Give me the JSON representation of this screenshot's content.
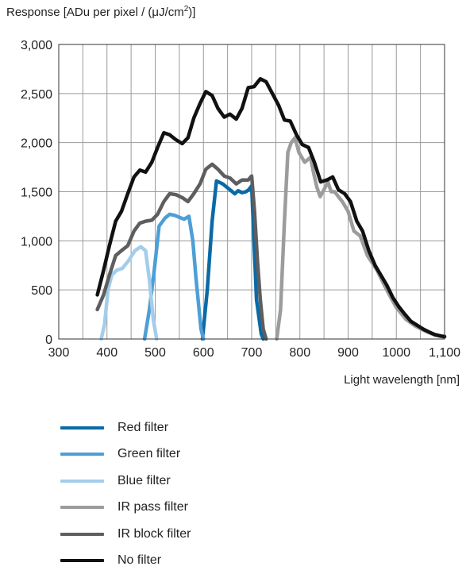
{
  "chart_data": {
    "type": "line",
    "ylabel": {
      "prefix": "Response [ADu per pixel / (μJ/cm",
      "sup": "2",
      "suffix": ")]"
    },
    "xlabel": "Light wavelength [nm]",
    "xlim": [
      300,
      1100
    ],
    "ylim": [
      0,
      3000
    ],
    "x_ticks": [
      300,
      400,
      500,
      600,
      700,
      800,
      900,
      1000,
      1100
    ],
    "x_tick_labels": [
      "300",
      "400",
      "500",
      "600",
      "700",
      "800",
      "900",
      "1000",
      "1,100"
    ],
    "y_ticks": [
      0,
      500,
      1000,
      1500,
      2000,
      2500,
      3000
    ],
    "y_tick_labels": [
      "0",
      "500",
      "1,000",
      "1,500",
      "2,000",
      "2,500",
      "3,000"
    ],
    "x_grid_step": 50,
    "grid": true,
    "legend_position": "bottom",
    "series": [
      {
        "name": "Red filter",
        "color": "#0a6aa6",
        "x": [
          598,
          608,
          618,
          627,
          640,
          655,
          665,
          672,
          680,
          688,
          694,
          700,
          710,
          720,
          724
        ],
        "y": [
          0,
          500,
          1200,
          1610,
          1580,
          1520,
          1480,
          1510,
          1490,
          1500,
          1520,
          1560,
          400,
          50,
          0
        ]
      },
      {
        "name": "Green filter",
        "color": "#4d9fd6",
        "x": [
          478,
          488,
          498,
          508,
          520,
          530,
          540,
          550,
          560,
          570,
          578,
          585,
          595,
          600
        ],
        "y": [
          0,
          300,
          700,
          1150,
          1230,
          1270,
          1260,
          1240,
          1220,
          1250,
          1000,
          600,
          100,
          0
        ]
      },
      {
        "name": "Blue filter",
        "color": "#a3cdea",
        "x": [
          388,
          395,
          402,
          410,
          420,
          432,
          445,
          458,
          470,
          480,
          488,
          496,
          503
        ],
        "y": [
          0,
          150,
          500,
          650,
          700,
          720,
          800,
          900,
          940,
          900,
          600,
          200,
          0
        ]
      },
      {
        "name": "IR pass filter",
        "color": "#9c9c9c",
        "x": [
          752,
          760,
          768,
          775,
          782,
          790,
          798,
          810,
          822,
          828,
          835,
          842,
          850,
          858,
          865,
          872,
          880,
          888,
          900,
          912,
          925,
          940,
          960,
          980,
          1000,
          1020,
          1040,
          1060,
          1080,
          1100
        ],
        "y": [
          0,
          300,
          1200,
          1900,
          2000,
          2050,
          1900,
          1800,
          1850,
          1700,
          1550,
          1450,
          1520,
          1600,
          1500,
          1500,
          1450,
          1400,
          1300,
          1100,
          1050,
          850,
          700,
          500,
          320,
          200,
          130,
          80,
          40,
          20
        ]
      },
      {
        "name": "IR block filter",
        "color": "#5e5e5e",
        "x": [
          380,
          393,
          405,
          418,
          430,
          443,
          456,
          468,
          480,
          493,
          505,
          518,
          530,
          543,
          556,
          568,
          580,
          593,
          605,
          618,
          630,
          643,
          655,
          668,
          680,
          693,
          700,
          706,
          712,
          718,
          724,
          730
        ],
        "y": [
          300,
          450,
          650,
          850,
          900,
          950,
          1100,
          1180,
          1200,
          1210,
          1270,
          1400,
          1480,
          1470,
          1440,
          1400,
          1480,
          1580,
          1730,
          1780,
          1730,
          1660,
          1640,
          1580,
          1620,
          1620,
          1660,
          1300,
          800,
          400,
          100,
          0
        ]
      },
      {
        "name": "No filter",
        "color": "#111111",
        "x": [
          380,
          393,
          405,
          418,
          430,
          443,
          456,
          468,
          480,
          493,
          505,
          518,
          530,
          543,
          556,
          568,
          580,
          593,
          605,
          618,
          630,
          643,
          655,
          668,
          680,
          693,
          705,
          718,
          730,
          743,
          756,
          768,
          780,
          793,
          805,
          818,
          830,
          843,
          856,
          868,
          880,
          893,
          905,
          918,
          930,
          943,
          956,
          968,
          980,
          993,
          1005,
          1018,
          1030,
          1043,
          1056,
          1068,
          1080,
          1093,
          1100
        ],
        "y": [
          450,
          700,
          950,
          1200,
          1300,
          1480,
          1650,
          1720,
          1700,
          1800,
          1950,
          2100,
          2080,
          2030,
          1990,
          2050,
          2250,
          2400,
          2520,
          2480,
          2350,
          2260,
          2290,
          2240,
          2350,
          2560,
          2570,
          2650,
          2620,
          2500,
          2380,
          2230,
          2220,
          2080,
          1980,
          1950,
          1800,
          1600,
          1620,
          1650,
          1520,
          1480,
          1400,
          1200,
          1100,
          900,
          750,
          650,
          550,
          420,
          330,
          250,
          180,
          140,
          100,
          70,
          45,
          30,
          25
        ]
      }
    ]
  }
}
